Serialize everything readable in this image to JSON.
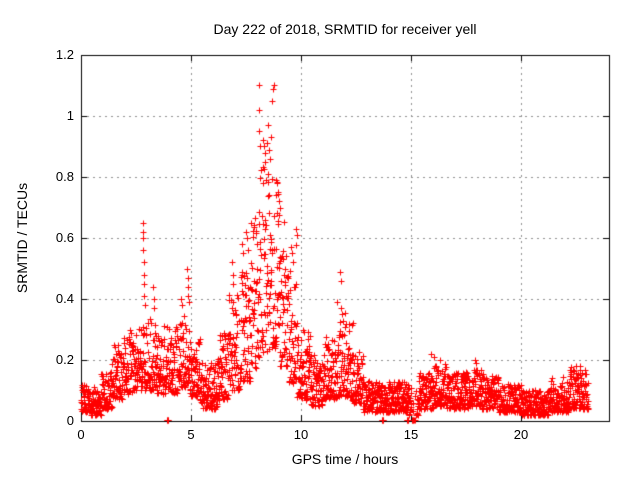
{
  "page": {
    "background": "#ffffff"
  },
  "chart_data": {
    "type": "scatter",
    "title": "Day 222 of 2018, SRMTID for receiver yell",
    "xlabel": "GPS time / hours",
    "ylabel": "SRMTID / TECUs",
    "xlim": [
      0,
      24
    ],
    "ylim": [
      0,
      1.2
    ],
    "xticks": [
      0,
      5,
      10,
      15,
      20
    ],
    "xtick_labels": [
      "0",
      "5",
      "10",
      "15",
      "20"
    ],
    "yticks": [
      0,
      0.2,
      0.4,
      0.6,
      0.8,
      1,
      1.2
    ],
    "ytick_labels": [
      "0",
      "0.2",
      "0.4",
      "0.6",
      "0.8",
      "1",
      "1.2"
    ],
    "grid": "dashed",
    "grid_color": "#909090",
    "axis_color": "#000000",
    "marker": "plus",
    "marker_color": "#ff0000",
    "series_name": "SRMTID",
    "t_start": 0.0,
    "t_end": 23.05,
    "sample_interval_hours": 0.008333,
    "sparse_gap": [
      15.02,
      15.24
    ],
    "band_profile": [
      [
        0.0,
        0.4,
        0.03,
        0.12
      ],
      [
        0.4,
        0.9,
        0.02,
        0.1
      ],
      [
        0.9,
        1.4,
        0.04,
        0.16
      ],
      [
        1.4,
        1.9,
        0.07,
        0.25
      ],
      [
        1.9,
        2.4,
        0.09,
        0.3
      ],
      [
        2.4,
        2.9,
        0.1,
        0.32
      ],
      [
        2.9,
        3.4,
        0.1,
        0.34
      ],
      [
        3.4,
        3.9,
        0.09,
        0.29
      ],
      [
        3.9,
        4.4,
        0.09,
        0.31
      ],
      [
        4.4,
        4.9,
        0.11,
        0.36
      ],
      [
        4.9,
        5.4,
        0.08,
        0.27
      ],
      [
        5.4,
        6.2,
        0.04,
        0.2
      ],
      [
        6.2,
        6.7,
        0.07,
        0.29
      ],
      [
        6.7,
        7.2,
        0.1,
        0.42
      ],
      [
        7.2,
        7.7,
        0.13,
        0.5
      ],
      [
        7.7,
        8.1,
        0.17,
        0.68
      ],
      [
        8.1,
        8.6,
        0.22,
        0.85
      ],
      [
        8.6,
        9.0,
        0.24,
        0.8
      ],
      [
        9.0,
        9.4,
        0.18,
        0.58
      ],
      [
        9.4,
        9.8,
        0.12,
        0.48
      ],
      [
        9.8,
        10.4,
        0.07,
        0.3
      ],
      [
        10.4,
        11.0,
        0.05,
        0.22
      ],
      [
        11.0,
        11.6,
        0.07,
        0.3
      ],
      [
        11.6,
        12.3,
        0.08,
        0.34
      ],
      [
        12.3,
        12.8,
        0.06,
        0.24
      ],
      [
        12.8,
        13.7,
        0.03,
        0.13
      ],
      [
        13.7,
        14.9,
        0.03,
        0.13
      ],
      [
        14.9,
        15.3,
        0.02,
        0.11
      ],
      [
        15.3,
        16.0,
        0.04,
        0.16
      ],
      [
        16.0,
        16.6,
        0.05,
        0.19
      ],
      [
        16.6,
        17.6,
        0.04,
        0.16
      ],
      [
        17.6,
        18.2,
        0.05,
        0.17
      ],
      [
        18.2,
        19.0,
        0.04,
        0.15
      ],
      [
        19.0,
        20.0,
        0.03,
        0.12
      ],
      [
        20.0,
        21.3,
        0.02,
        0.1
      ],
      [
        21.3,
        22.2,
        0.03,
        0.13
      ],
      [
        22.2,
        23.05,
        0.04,
        0.17
      ]
    ],
    "spike_points": [
      [
        2.8,
        0.65
      ],
      [
        2.82,
        0.62
      ],
      [
        2.84,
        0.6
      ],
      [
        2.83,
        0.56
      ],
      [
        2.86,
        0.52
      ],
      [
        2.85,
        0.48
      ],
      [
        2.88,
        0.45
      ],
      [
        2.87,
        0.41
      ],
      [
        2.9,
        0.38
      ],
      [
        3.25,
        0.44
      ],
      [
        3.3,
        0.4
      ],
      [
        3.33,
        0.37
      ],
      [
        4.55,
        0.4
      ],
      [
        4.6,
        0.38
      ],
      [
        4.82,
        0.5
      ],
      [
        4.85,
        0.47
      ],
      [
        4.86,
        0.44
      ],
      [
        4.88,
        0.41
      ],
      [
        4.9,
        0.39
      ],
      [
        6.85,
        0.52
      ],
      [
        6.9,
        0.48
      ],
      [
        6.93,
        0.45
      ],
      [
        7.3,
        0.58
      ],
      [
        7.35,
        0.55
      ],
      [
        7.5,
        0.62
      ],
      [
        7.55,
        0.6
      ],
      [
        7.58,
        0.56
      ],
      [
        8.07,
        1.1
      ],
      [
        8.09,
        1.02
      ],
      [
        8.11,
        0.95
      ],
      [
        8.14,
        0.9
      ],
      [
        8.25,
        0.92
      ],
      [
        8.3,
        0.9
      ],
      [
        8.36,
        0.88
      ],
      [
        8.45,
        0.91
      ],
      [
        8.5,
        0.97
      ],
      [
        8.55,
        0.89
      ],
      [
        8.6,
        0.86
      ],
      [
        8.65,
        0.93
      ],
      [
        8.7,
        1.05
      ],
      [
        8.72,
        1.09
      ],
      [
        8.75,
        1.1
      ],
      [
        8.9,
        0.78
      ],
      [
        8.95,
        0.75
      ],
      [
        9.0,
        0.72
      ],
      [
        9.05,
        0.7
      ],
      [
        9.55,
        0.57
      ],
      [
        9.6,
        0.55
      ],
      [
        9.65,
        0.52
      ],
      [
        9.78,
        0.63
      ],
      [
        9.82,
        0.61
      ],
      [
        11.78,
        0.49
      ],
      [
        11.83,
        0.46
      ],
      [
        11.8,
        0.37
      ],
      [
        11.85,
        0.35
      ],
      [
        12.35,
        0.32
      ],
      [
        15.9,
        0.22
      ],
      [
        16.05,
        0.21
      ],
      [
        16.3,
        0.2
      ],
      [
        17.9,
        0.2
      ],
      [
        17.95,
        0.19
      ],
      [
        22.5,
        0.18
      ],
      [
        22.7,
        0.18
      ]
    ],
    "zero_points": [
      3.9,
      3.95,
      13.68,
      13.72,
      14.8,
      14.85,
      15.05,
      15.1,
      15.15
    ]
  }
}
